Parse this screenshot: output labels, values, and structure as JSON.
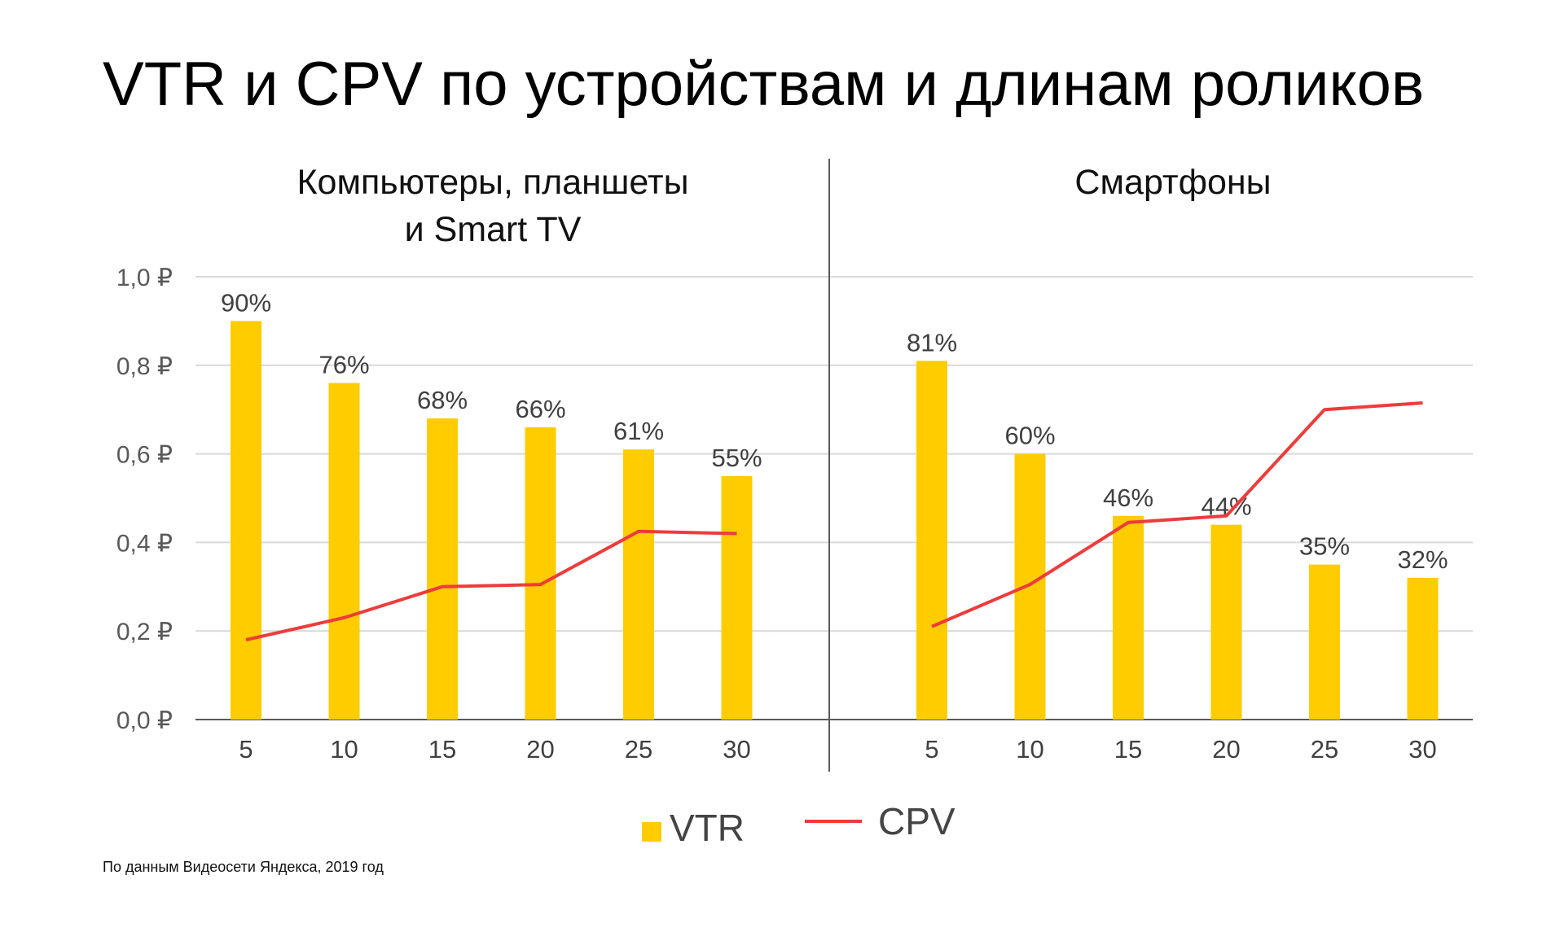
{
  "title": "VTR и CPV по устройствам и длинам роликов",
  "panels": {
    "left": {
      "title_line1": "Компьютеры, планшеты",
      "title_line2": "и Smart TV"
    },
    "right": {
      "title": "Смартфоны"
    }
  },
  "legend": {
    "vtr": "VTR",
    "cpv": "CPV"
  },
  "source": "По данным Видеосети Яндекса, 2019 год",
  "colors": {
    "bar": "#FFCC00",
    "line": "#EE3B3B",
    "grid": "#D9D9D9",
    "axis": "#595959",
    "divider": "#595959"
  },
  "chart_data": {
    "type": "bar",
    "y_axis": {
      "ylim": [
        0,
        1.0
      ],
      "ticks": [
        0,
        0.2,
        0.4,
        0.6,
        0.8,
        1.0
      ],
      "tick_labels": [
        "0,0 ₽",
        "0,2 ₽",
        "0,4 ₽",
        "0,6 ₽",
        "0,8 ₽",
        "1,0 ₽"
      ]
    },
    "panels": [
      {
        "title": "Компьютеры, планшеты и Smart TV",
        "categories": [
          "5",
          "10",
          "15",
          "20",
          "25",
          "30"
        ],
        "series": [
          {
            "name": "VTR",
            "type": "bar",
            "values": [
              0.9,
              0.76,
              0.68,
              0.66,
              0.61,
              0.55
            ],
            "labels": [
              "90%",
              "76%",
              "68%",
              "66%",
              "61%",
              "55%"
            ]
          },
          {
            "name": "CPV",
            "type": "line",
            "values": [
              0.18,
              0.23,
              0.3,
              0.305,
              0.425,
              0.42
            ]
          }
        ]
      },
      {
        "title": "Смартфоны",
        "categories": [
          "5",
          "10",
          "15",
          "20",
          "25",
          "30"
        ],
        "series": [
          {
            "name": "VTR",
            "type": "bar",
            "values": [
              0.81,
              0.6,
              0.46,
              0.44,
              0.35,
              0.32
            ],
            "labels": [
              "81%",
              "60%",
              "46%",
              "44%",
              "35%",
              "32%"
            ]
          },
          {
            "name": "CPV",
            "type": "line",
            "values": [
              0.21,
              0.305,
              0.445,
              0.46,
              0.7,
              0.715
            ]
          }
        ]
      }
    ],
    "grid": true,
    "legend_position": "bottom-center"
  }
}
